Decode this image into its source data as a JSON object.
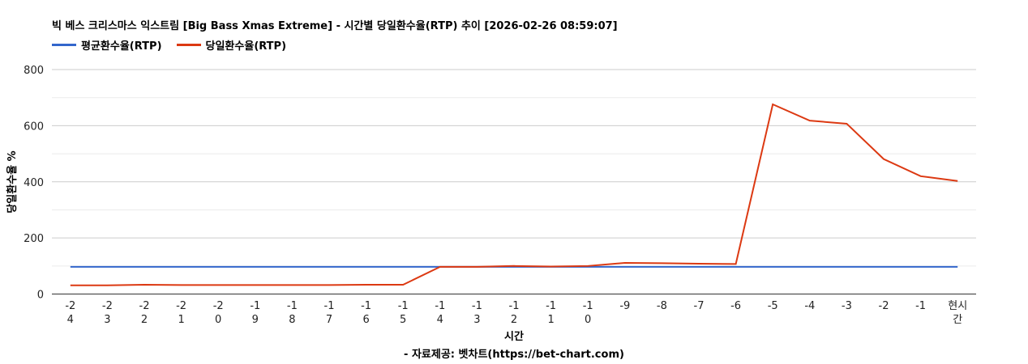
{
  "chart_data": {
    "type": "line",
    "title": "빅 베스 크리스마스 익스트림 [Big Bass Xmas Extreme] - 시간별 당일환수율(RTP) 추이 [2026-02-26 08:59:07]",
    "xlabel": "시간",
    "source": "- 자료제공: 벳차트(https://bet-chart.com)",
    "ylabel": "당일환수율 %",
    "ylim": [
      0,
      800
    ],
    "yticks": [
      0,
      200,
      400,
      600,
      800
    ],
    "grid": true,
    "legend": "top-left",
    "categories": [
      "-24",
      "-23",
      "-22",
      "-21",
      "-20",
      "-19",
      "-18",
      "-17",
      "-16",
      "-15",
      "-14",
      "-13",
      "-12",
      "-11",
      "-10",
      "-9",
      "-8",
      "-7",
      "-6",
      "-5",
      "-4",
      "-3",
      "-2",
      "-1",
      "현시간"
    ],
    "series": [
      {
        "name": "평균환수율(RTP)",
        "color": "#3366cc",
        "values": [
          97,
          97,
          97,
          97,
          97,
          97,
          97,
          97,
          97,
          97,
          97,
          97,
          97,
          97,
          97,
          97,
          97,
          97,
          97,
          97,
          97,
          97,
          97,
          97,
          97
        ]
      },
      {
        "name": "당일환수율(RTP)",
        "color": "#dc3912",
        "values": [
          31,
          31,
          33,
          32,
          32,
          32,
          32,
          32,
          33,
          33,
          97,
          97,
          100,
          98,
          100,
          111,
          110,
          108,
          107,
          676,
          618,
          607,
          481,
          420,
          403
        ]
      }
    ]
  }
}
